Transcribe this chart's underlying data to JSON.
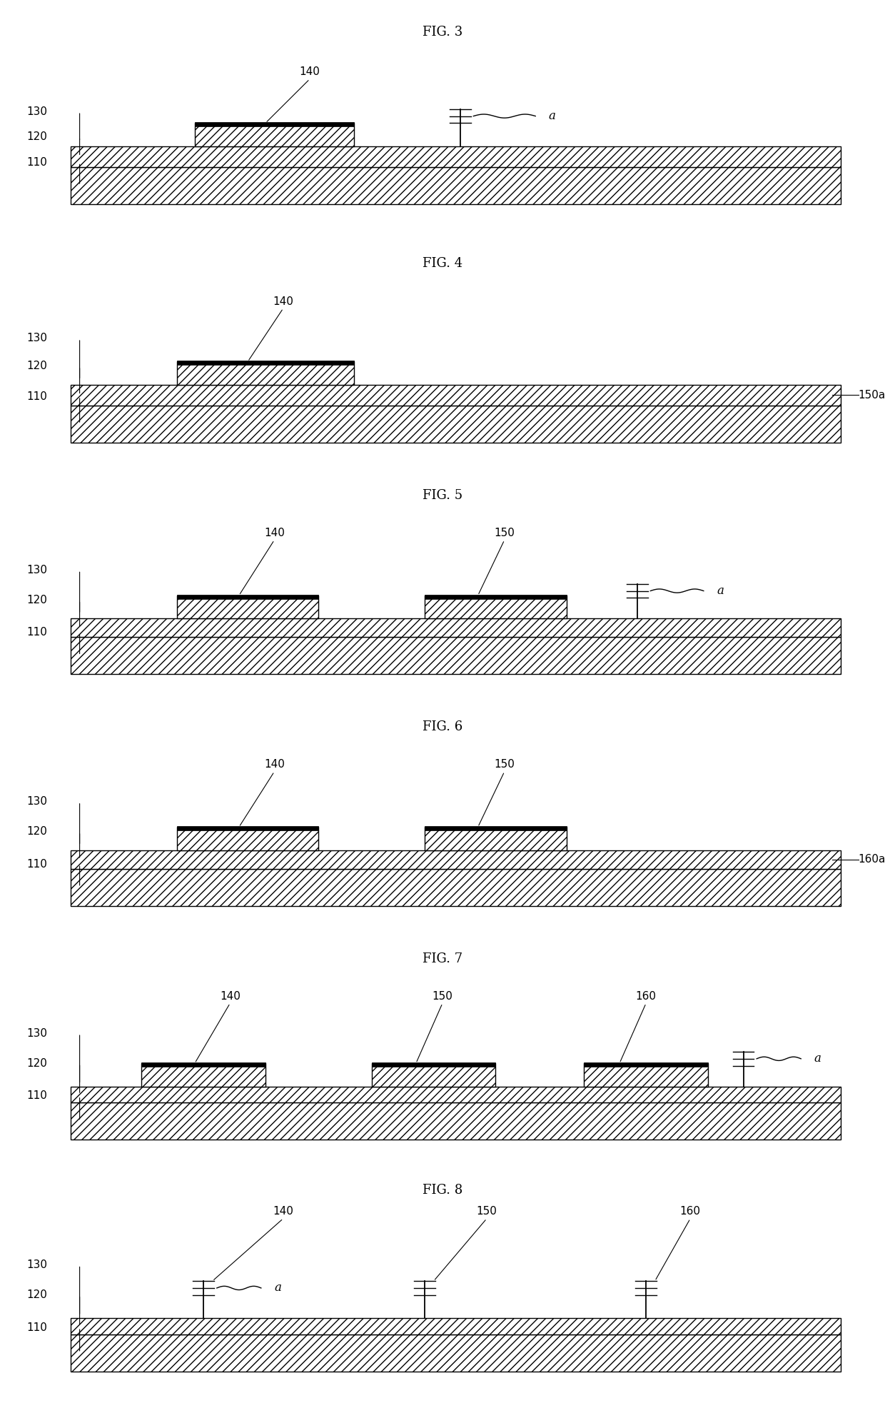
{
  "figures": [
    "FIG. 3",
    "FIG. 4",
    "FIG. 5",
    "FIG. 6",
    "FIG. 7",
    "FIG. 8"
  ],
  "bg_color": "#ffffff",
  "line_color": "#000000",
  "label_color": "#000000",
  "font_size": 11,
  "title_font_size": 13,
  "fig_height": 19.86,
  "fig_width": 12.4
}
